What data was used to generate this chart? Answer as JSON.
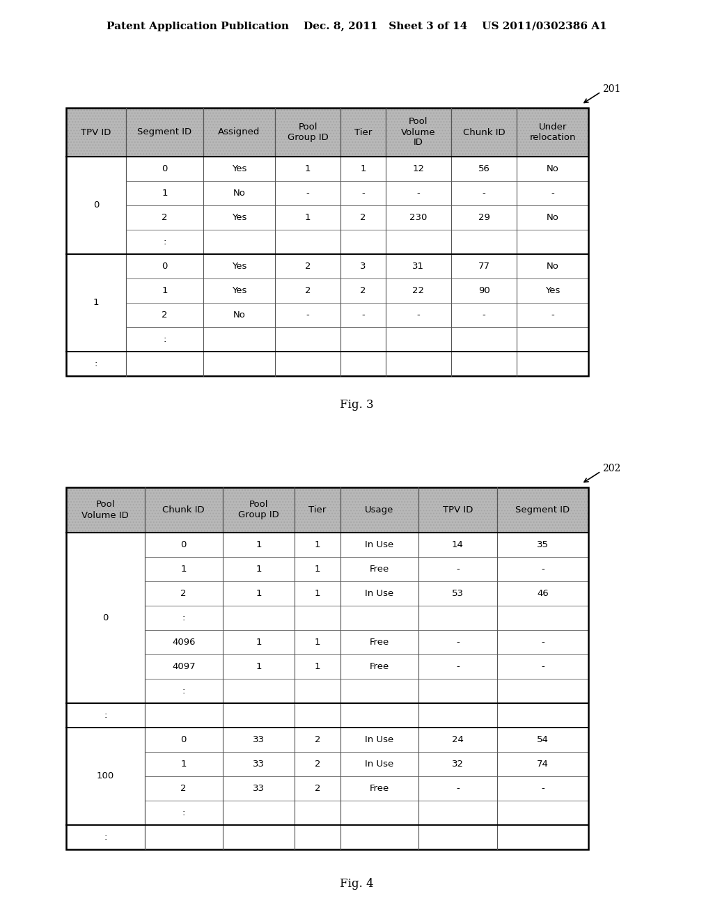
{
  "header_text_left": "Patent Application Publication",
  "header_text_mid": "Dec. 8, 2011   Sheet 3 of 14",
  "header_text_right": "US 2011/0302386 A1",
  "fig3_label": "Fig. 3",
  "fig4_label": "Fig. 4",
  "ref201": "201",
  "ref202": "202",
  "table1": {
    "headers": [
      "TPV ID",
      "Segment ID",
      "Assigned",
      "Pool\nGroup ID",
      "Tier",
      "Pool\nVolume\nID",
      "Chunk ID",
      "Under\nrelocation"
    ],
    "col_widths_norm": [
      1.0,
      1.3,
      1.2,
      1.1,
      0.75,
      1.1,
      1.1,
      1.2
    ],
    "groups": [
      {
        "group_label": "0",
        "rows": [
          [
            "0",
            "Yes",
            "1",
            "1",
            "12",
            "56",
            "No"
          ],
          [
            "1",
            "No",
            "-",
            "-",
            "-",
            "-",
            "-"
          ],
          [
            "2",
            "Yes",
            "1",
            "2",
            "230",
            "29",
            "No"
          ],
          [
            ":",
            "",
            "",
            "",
            "",
            "",
            ""
          ]
        ]
      },
      {
        "group_label": "1",
        "rows": [
          [
            "0",
            "Yes",
            "2",
            "3",
            "31",
            "77",
            "No"
          ],
          [
            "1",
            "Yes",
            "2",
            "2",
            "22",
            "90",
            "Yes"
          ],
          [
            "2",
            "No",
            "-",
            "-",
            "-",
            "-",
            "-"
          ],
          [
            ":",
            "",
            "",
            "",
            "",
            "",
            ""
          ]
        ]
      },
      {
        "group_label": ":",
        "rows": [
          [
            "",
            "",
            "",
            "",
            "",
            "",
            ""
          ]
        ]
      }
    ]
  },
  "table2": {
    "headers": [
      "Pool\nVolume ID",
      "Chunk ID",
      "Pool\nGroup ID",
      "Tier",
      "Usage",
      "TPV ID",
      "Segment ID"
    ],
    "col_widths_norm": [
      1.2,
      1.2,
      1.1,
      0.7,
      1.2,
      1.2,
      1.4
    ],
    "groups": [
      {
        "group_label": "0",
        "rows": [
          [
            "0",
            "1",
            "1",
            "In Use",
            "14",
            "35"
          ],
          [
            "1",
            "1",
            "1",
            "Free",
            "-",
            "-"
          ],
          [
            "2",
            "1",
            "1",
            "In Use",
            "53",
            "46"
          ],
          [
            ":",
            "",
            "",
            "",
            "",
            ""
          ],
          [
            "4096",
            "1",
            "1",
            "Free",
            "-",
            "-"
          ],
          [
            "4097",
            "1",
            "1",
            "Free",
            "-",
            "-"
          ],
          [
            ":",
            "",
            "",
            "",
            "",
            ""
          ]
        ]
      },
      {
        "group_label": ":",
        "rows": [
          [
            "",
            "",
            "",
            "",
            "",
            ""
          ]
        ]
      },
      {
        "group_label": "100",
        "rows": [
          [
            "0",
            "33",
            "2",
            "In Use",
            "24",
            "54"
          ],
          [
            "1",
            "33",
            "2",
            "In Use",
            "32",
            "74"
          ],
          [
            "2",
            "33",
            "2",
            "Free",
            "-",
            "-"
          ],
          [
            ":",
            "",
            "",
            "",
            "",
            ""
          ]
        ]
      },
      {
        "group_label": ":",
        "rows": [
          [
            "",
            "",
            "",
            "",
            "",
            ""
          ]
        ]
      }
    ]
  },
  "header_bg": "#b8b8b8",
  "cell_bg": "#ffffff",
  "border_color": "#000000",
  "font_size": 9.5,
  "header_font_size": 9.5
}
